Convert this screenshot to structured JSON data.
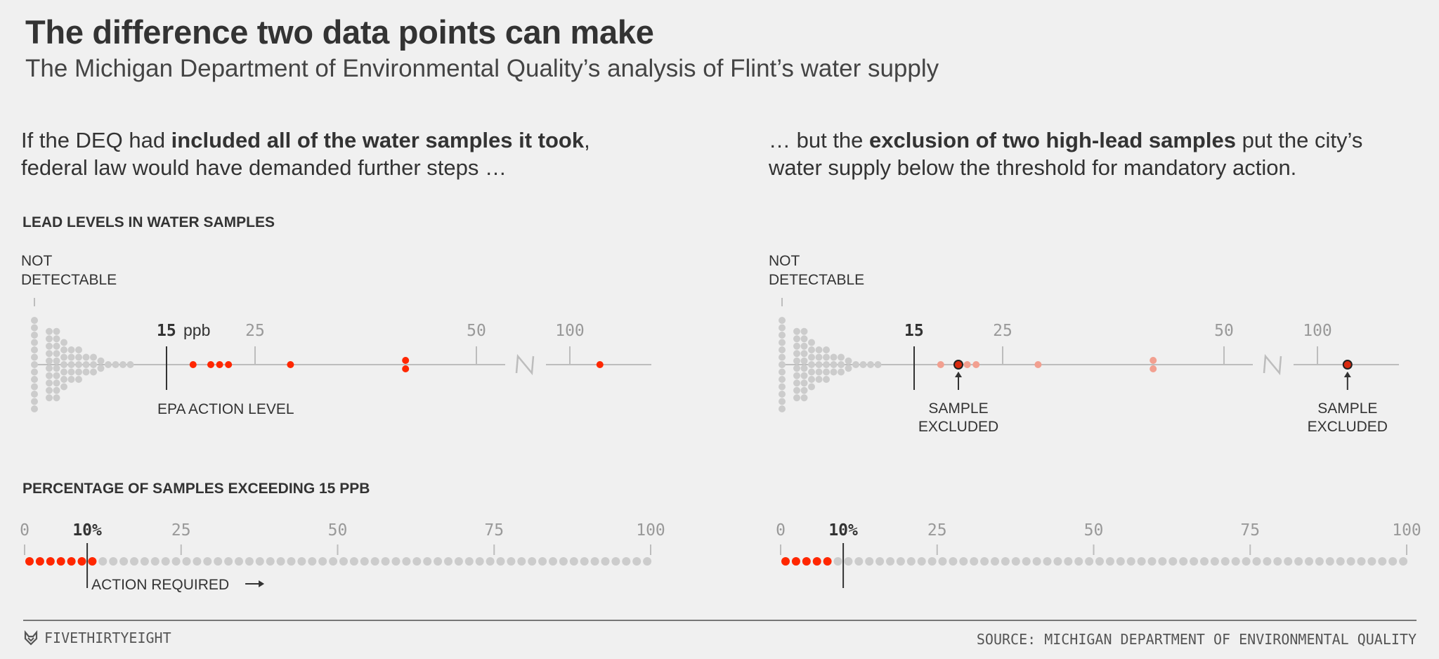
{
  "header": {
    "title": "The difference two data points can make",
    "subtitle": "The Michigan Department of Environmental Quality’s analysis of Flint’s water supply"
  },
  "intro_left": {
    "pre": "If the DEQ had ",
    "bold": "included all of the water samples it took",
    "post": ",",
    "line2": "federal law would have demanded further steps …"
  },
  "intro_right": {
    "pre": "… but the ",
    "bold": "exclusion of two high-lead samples",
    "post": " put the city’s",
    "line2": "water supply below the threshold for mandatory action."
  },
  "sections": {
    "lead_levels": "LEAD LEVELS IN WATER SAMPLES",
    "percentage": "PERCENTAGE OF SAMPLES EXCEEDING 15 PPB"
  },
  "labels": {
    "not_detectable_1": "NOT",
    "not_detectable_2": "DETECTABLE",
    "epa_action_level": "EPA ACTION LEVEL",
    "sample_excluded_1": "SAMPLE",
    "sample_excluded_2": "EXCLUDED",
    "action_required": "ACTION REQUIRED",
    "ppb_unit": "ppb"
  },
  "colors": {
    "exceed": "#ff2700",
    "exceed_light": "#f2a090",
    "below": "#cccccc",
    "axis": "#bdbdbd",
    "tick_label": "#999999",
    "threshold": "#333333"
  },
  "chart_data": [
    {
      "type": "scatter",
      "title": "LEAD LEVELS IN WATER SAMPLES",
      "panel": "all samples",
      "xlabel": "ppb",
      "ticks": [
        15,
        25,
        50,
        100
      ],
      "threshold": 15,
      "threshold_label": "EPA ACTION LEVEL",
      "axis_break": true,
      "below_threshold_columns": [
        13,
        0,
        10,
        10,
        7,
        5,
        5,
        3,
        3,
        2,
        1,
        1,
        1,
        1
      ],
      "exceeding_values": [
        18,
        20,
        21,
        22,
        29,
        42,
        42,
        104
      ],
      "excluded_values": []
    },
    {
      "type": "scatter",
      "title": "LEAD LEVELS IN WATER SAMPLES",
      "panel": "two samples excluded",
      "xlabel": "ppb",
      "ticks": [
        15,
        25,
        50,
        100
      ],
      "threshold": 15,
      "axis_break": true,
      "below_threshold_columns": [
        13,
        0,
        10,
        10,
        7,
        5,
        5,
        3,
        3,
        2,
        1,
        1,
        1,
        1
      ],
      "exceeding_values": [
        18,
        20,
        21,
        22,
        29,
        42,
        42,
        104
      ],
      "excluded_values": [
        20,
        104
      ],
      "excluded_label": "SAMPLE EXCLUDED"
    },
    {
      "type": "scatter",
      "title": "PERCENTAGE OF SAMPLES EXCEEDING 15 PPB",
      "panel": "all samples",
      "ticks": [
        "0",
        "10%",
        "25",
        "50",
        "75",
        "100"
      ],
      "xlim": [
        0,
        100
      ],
      "threshold_pct": 10,
      "threshold_label": "ACTION REQUIRED",
      "total_dots": 60,
      "exceeding_dots": 7
    },
    {
      "type": "scatter",
      "title": "PERCENTAGE OF SAMPLES EXCEEDING 15 PPB",
      "panel": "two samples excluded",
      "ticks": [
        "0",
        "10%",
        "25",
        "50",
        "75",
        "100"
      ],
      "xlim": [
        0,
        100
      ],
      "threshold_pct": 10,
      "total_dots": 60,
      "exceeding_dots": 5
    }
  ],
  "footer": {
    "brand": "FIVETHIRTYEIGHT",
    "source": "SOURCE: MICHIGAN DEPARTMENT OF ENVIRONMENTAL QUALITY"
  }
}
